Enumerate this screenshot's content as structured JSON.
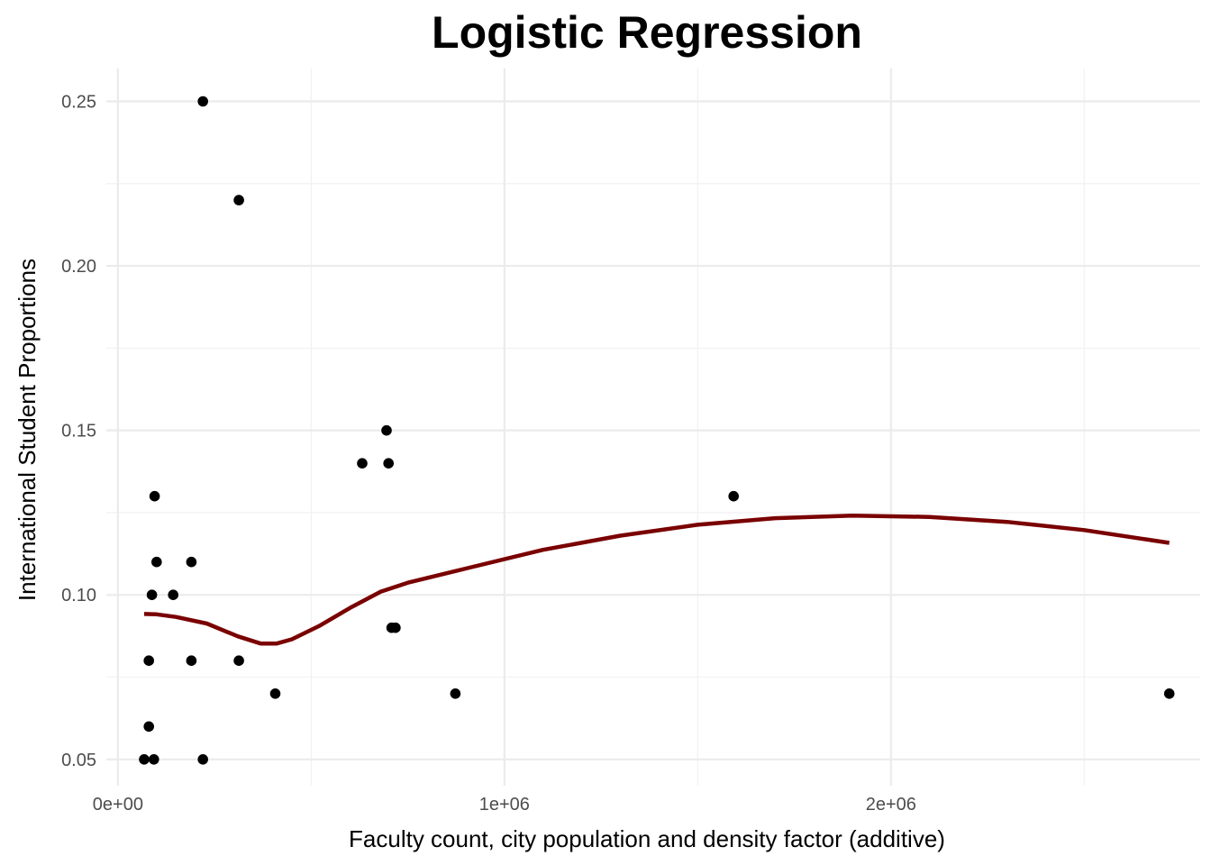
{
  "chart_data": {
    "type": "scatter",
    "title": "Logistic Regression",
    "xlabel": "Faculty count, city population and density factor (additive)",
    "ylabel": "International Student Proportions",
    "xlim": [
      -30000,
      2800000
    ],
    "ylim": [
      0.042,
      0.26
    ],
    "x_ticks": [
      {
        "value": 0,
        "label": "0e+00"
      },
      {
        "value": 1000000,
        "label": "1e+06"
      },
      {
        "value": 2000000,
        "label": "2e+06"
      }
    ],
    "x_minor_ticks": [
      500000,
      1500000,
      2500000
    ],
    "y_ticks": [
      {
        "value": 0.05,
        "label": "0.05"
      },
      {
        "value": 0.1,
        "label": "0.10"
      },
      {
        "value": 0.15,
        "label": "0.15"
      },
      {
        "value": 0.2,
        "label": "0.20"
      },
      {
        "value": 0.25,
        "label": "0.25"
      }
    ],
    "y_minor_ticks": [
      0.075,
      0.125,
      0.175,
      0.225
    ],
    "grid": true,
    "legend": "none",
    "point_color": "#000000",
    "line_color": "#7a0000",
    "points": [
      {
        "x": 68000,
        "y": 0.05
      },
      {
        "x": 93000,
        "y": 0.05
      },
      {
        "x": 220000,
        "y": 0.05
      },
      {
        "x": 80000,
        "y": 0.06
      },
      {
        "x": 80000,
        "y": 0.08
      },
      {
        "x": 190000,
        "y": 0.08
      },
      {
        "x": 313000,
        "y": 0.08
      },
      {
        "x": 407000,
        "y": 0.07
      },
      {
        "x": 873000,
        "y": 0.07
      },
      {
        "x": 2720000,
        "y": 0.07
      },
      {
        "x": 708000,
        "y": 0.09
      },
      {
        "x": 718000,
        "y": 0.09
      },
      {
        "x": 88000,
        "y": 0.1
      },
      {
        "x": 143000,
        "y": 0.1
      },
      {
        "x": 100000,
        "y": 0.11
      },
      {
        "x": 190000,
        "y": 0.11
      },
      {
        "x": 95000,
        "y": 0.13
      },
      {
        "x": 1593000,
        "y": 0.13
      },
      {
        "x": 632000,
        "y": 0.14
      },
      {
        "x": 700000,
        "y": 0.14
      },
      {
        "x": 695000,
        "y": 0.15
      },
      {
        "x": 313000,
        "y": 0.22
      },
      {
        "x": 220000,
        "y": 0.25
      }
    ],
    "fit_line": [
      {
        "x": 68000,
        "y": 0.0942
      },
      {
        "x": 100000,
        "y": 0.0941
      },
      {
        "x": 150000,
        "y": 0.0933
      },
      {
        "x": 230000,
        "y": 0.0913
      },
      {
        "x": 310000,
        "y": 0.0874
      },
      {
        "x": 370000,
        "y": 0.0852
      },
      {
        "x": 410000,
        "y": 0.0852
      },
      {
        "x": 450000,
        "y": 0.0865
      },
      {
        "x": 520000,
        "y": 0.0905
      },
      {
        "x": 600000,
        "y": 0.096
      },
      {
        "x": 680000,
        "y": 0.101
      },
      {
        "x": 750000,
        "y": 0.1037
      },
      {
        "x": 900000,
        "y": 0.108
      },
      {
        "x": 1100000,
        "y": 0.1137
      },
      {
        "x": 1300000,
        "y": 0.118
      },
      {
        "x": 1500000,
        "y": 0.1213
      },
      {
        "x": 1700000,
        "y": 0.1233
      },
      {
        "x": 1900000,
        "y": 0.1241
      },
      {
        "x": 2100000,
        "y": 0.1237
      },
      {
        "x": 2300000,
        "y": 0.1222
      },
      {
        "x": 2500000,
        "y": 0.1197
      },
      {
        "x": 2720000,
        "y": 0.1158
      }
    ]
  }
}
